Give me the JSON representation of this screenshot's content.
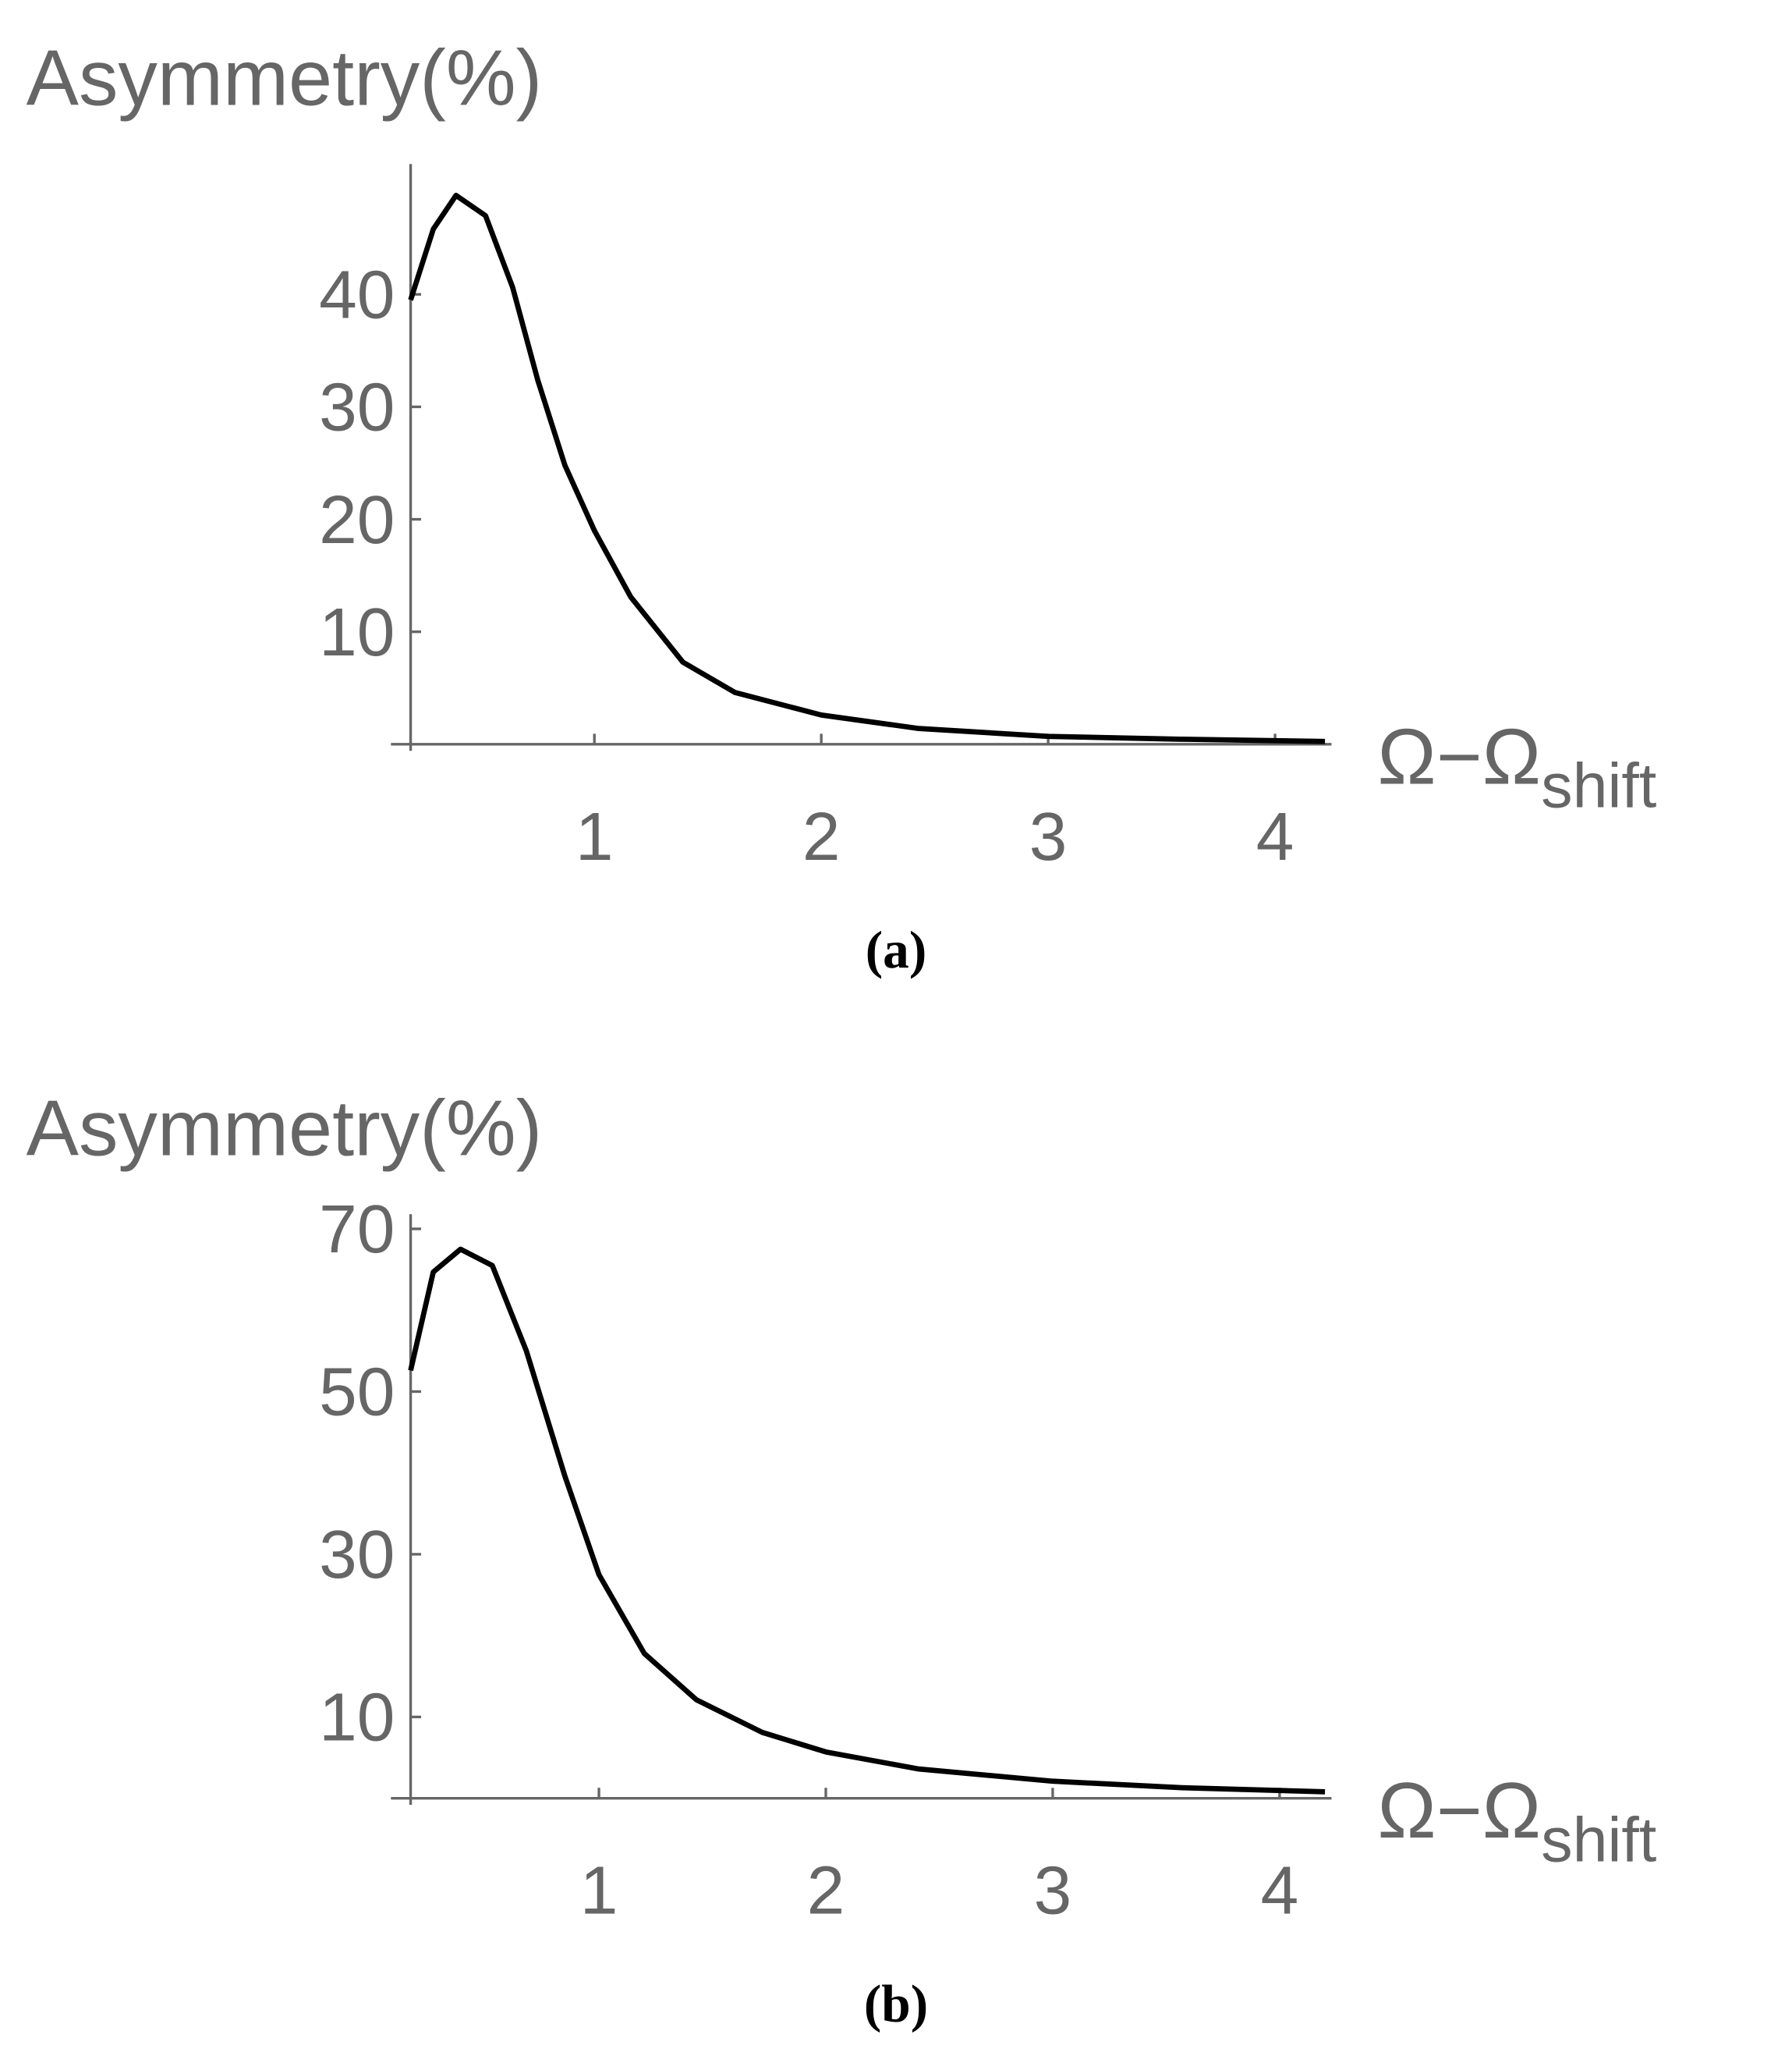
{
  "chart_data": [
    {
      "type": "line",
      "caption": "(a)",
      "y_label": "Asymmetry(%)",
      "x_label": "Ω−Ω",
      "x_label_subscript": "shift",
      "xlim": [
        0.19,
        4.22
      ],
      "ylim": [
        0,
        51
      ],
      "xticks": [
        1,
        2,
        3,
        4
      ],
      "yticks": [
        10,
        20,
        30,
        40
      ],
      "series": [
        {
          "color": "#000000",
          "x": [
            0.19,
            0.29,
            0.39,
            0.52,
            0.64,
            0.75,
            0.87,
            1.0,
            1.16,
            1.39,
            1.62,
            2.0,
            2.43,
            3.0,
            3.58,
            4.22
          ],
          "values": [
            39.5,
            45.8,
            48.8,
            47,
            40.6,
            32.4,
            24.8,
            19,
            13.1,
            7.3,
            4.6,
            2.6,
            1.4,
            0.7,
            0.45,
            0.25
          ]
        }
      ]
    },
    {
      "type": "line",
      "caption": "(b)",
      "y_label": "Asymmetry(%)",
      "x_label": "Ω−Ω",
      "x_label_subscript": "shift",
      "xlim": [
        0.17,
        4.2
      ],
      "ylim": [
        0,
        71
      ],
      "xticks": [
        1,
        2,
        3,
        4
      ],
      "yticks": [
        10,
        30,
        50,
        70
      ],
      "series": [
        {
          "color": "#000000",
          "x": [
            0.17,
            0.27,
            0.39,
            0.53,
            0.68,
            0.85,
            1.0,
            1.2,
            1.43,
            1.72,
            2.0,
            2.41,
            3.0,
            3.57,
            4.2
          ],
          "values": [
            52.6,
            64.7,
            67.5,
            65.5,
            55,
            39.6,
            27.5,
            17.8,
            12.1,
            8.1,
            5.7,
            3.6,
            2.1,
            1.3,
            0.8
          ]
        }
      ]
    }
  ]
}
